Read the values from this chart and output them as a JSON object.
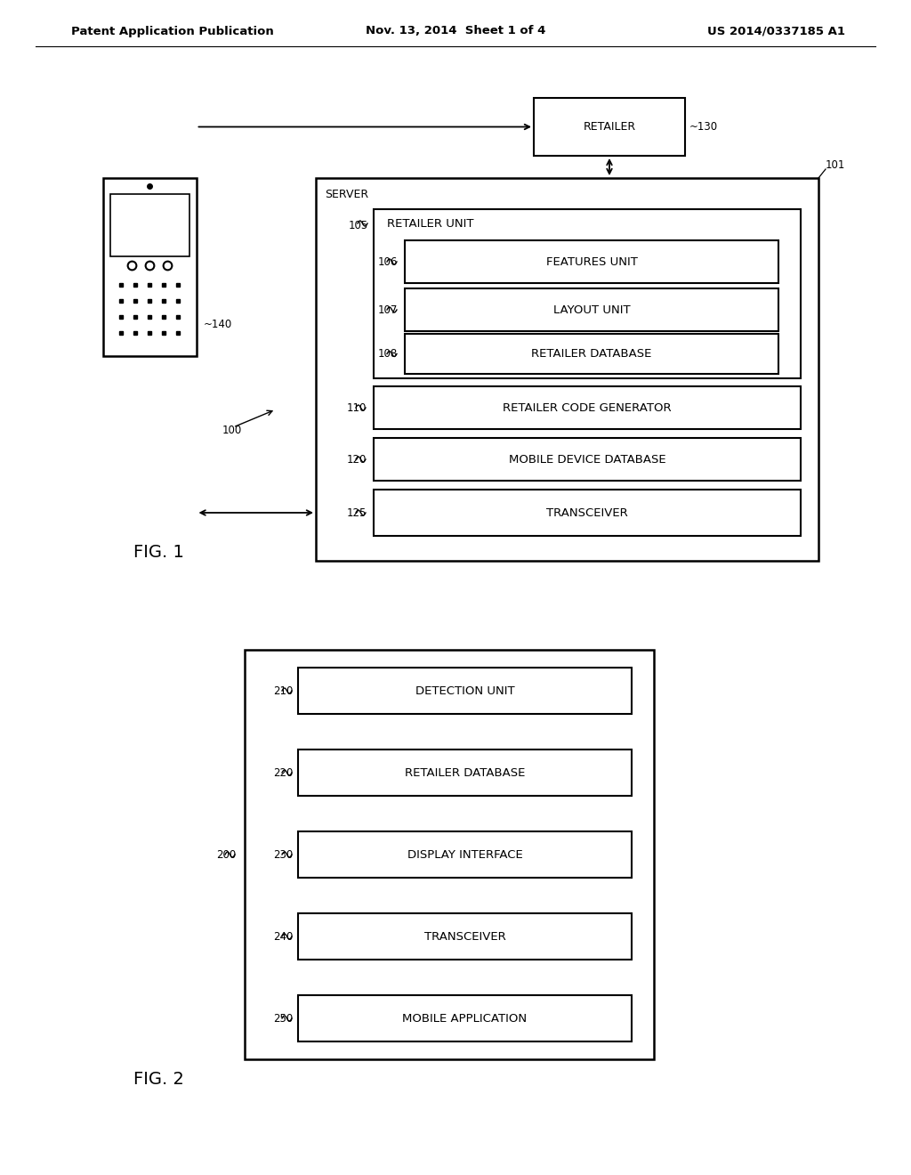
{
  "bg_color": "#ffffff",
  "header_left": "Patent Application Publication",
  "header_mid": "Nov. 13, 2014  Sheet 1 of 4",
  "header_right": "US 2014/0337185 A1",
  "fig1": {
    "server_label": "SERVER",
    "server_ref": "101",
    "retailer_label": "RETAILER",
    "retailer_ref": "~130",
    "retailer_unit_label": "RETAILER UNIT",
    "retailer_unit_ref": "105",
    "features_unit_label": "FEATURES UNIT",
    "features_unit_ref": "106",
    "layout_unit_label": "LAYOUT UNIT",
    "layout_unit_ref": "107",
    "retailer_db_label": "RETAILER DATABASE",
    "retailer_db_ref": "108",
    "code_gen_label": "RETAILER CODE GENERATOR",
    "code_gen_ref": "110",
    "mobile_db_label": "MOBILE DEVICE DATABASE",
    "mobile_db_ref": "120",
    "transceiver_label": "TRANSCEIVER",
    "transceiver_ref": "125",
    "mobile_ref": "~140",
    "system_ref": "100",
    "fig_label": "FIG. 1"
  },
  "fig2": {
    "system_ref": "200",
    "fig_label": "FIG. 2",
    "boxes": [
      {
        "label": "DETECTION UNIT",
        "ref": "210"
      },
      {
        "label": "RETAILER DATABASE",
        "ref": "220"
      },
      {
        "label": "DISPLAY INTERFACE",
        "ref": "230"
      },
      {
        "label": "TRANSCEIVER",
        "ref": "240"
      },
      {
        "label": "MOBILE APPLICATION",
        "ref": "250"
      }
    ]
  }
}
